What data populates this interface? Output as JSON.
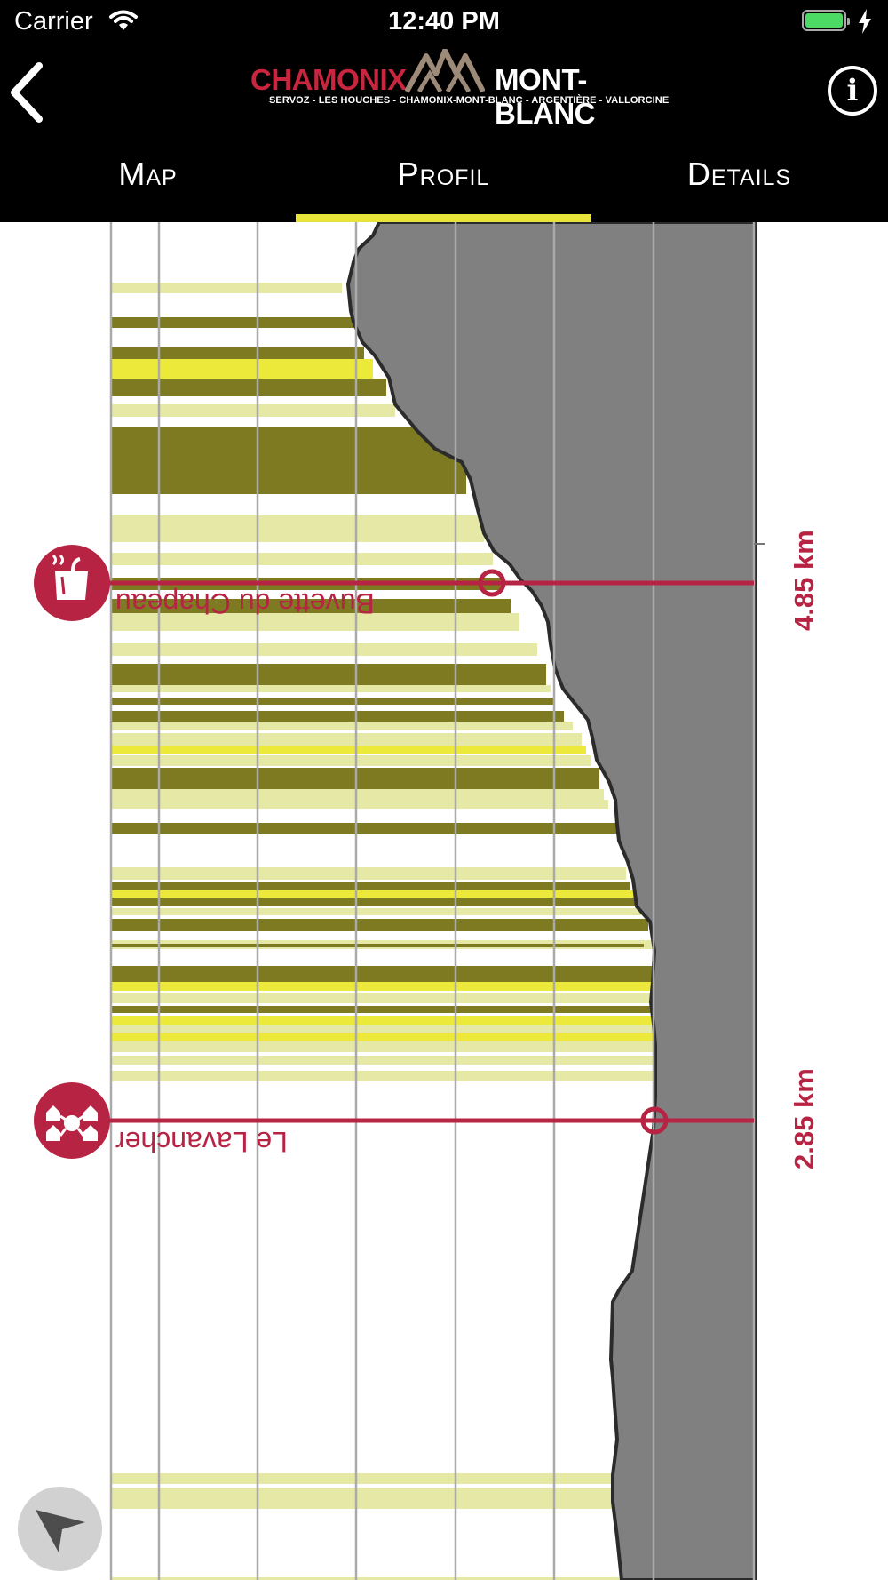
{
  "status_bar": {
    "carrier": "Carrier",
    "time": "12:40 PM"
  },
  "header": {
    "logo_word_left": "CHAMONIX",
    "logo_word_right": "MONT-BLANC",
    "logo_subtitle": "SERVOZ - LES HOUCHES - CHAMONIX-MONT-BLANC - ARGENTIÈRE - VALLORCINE",
    "back_icon": "chevron-left-icon",
    "info_icon": "info-icon",
    "info_glyph": "i"
  },
  "tabs": [
    {
      "label": "Map",
      "active": false
    },
    {
      "label": "Profil",
      "active": true
    },
    {
      "label": "Details",
      "active": false
    }
  ],
  "profile": {
    "colors": {
      "accent": "#b72443",
      "terrain": "#808080",
      "slope_dark": "#7d7a22",
      "slope_bright": "#ece93a",
      "slope_light": "#e6e8a5",
      "tab_indicator": "#e6e33a"
    },
    "waypoints": [
      {
        "name": "Buvette du Chapeau",
        "distance": "4.85 km",
        "icon": "refreshment-bar-icon"
      },
      {
        "name": "Le Lavancher",
        "distance": "2.85 km",
        "icon": "village-icon"
      }
    ]
  },
  "locate_button": {
    "icon": "navigation-arrow-icon"
  }
}
